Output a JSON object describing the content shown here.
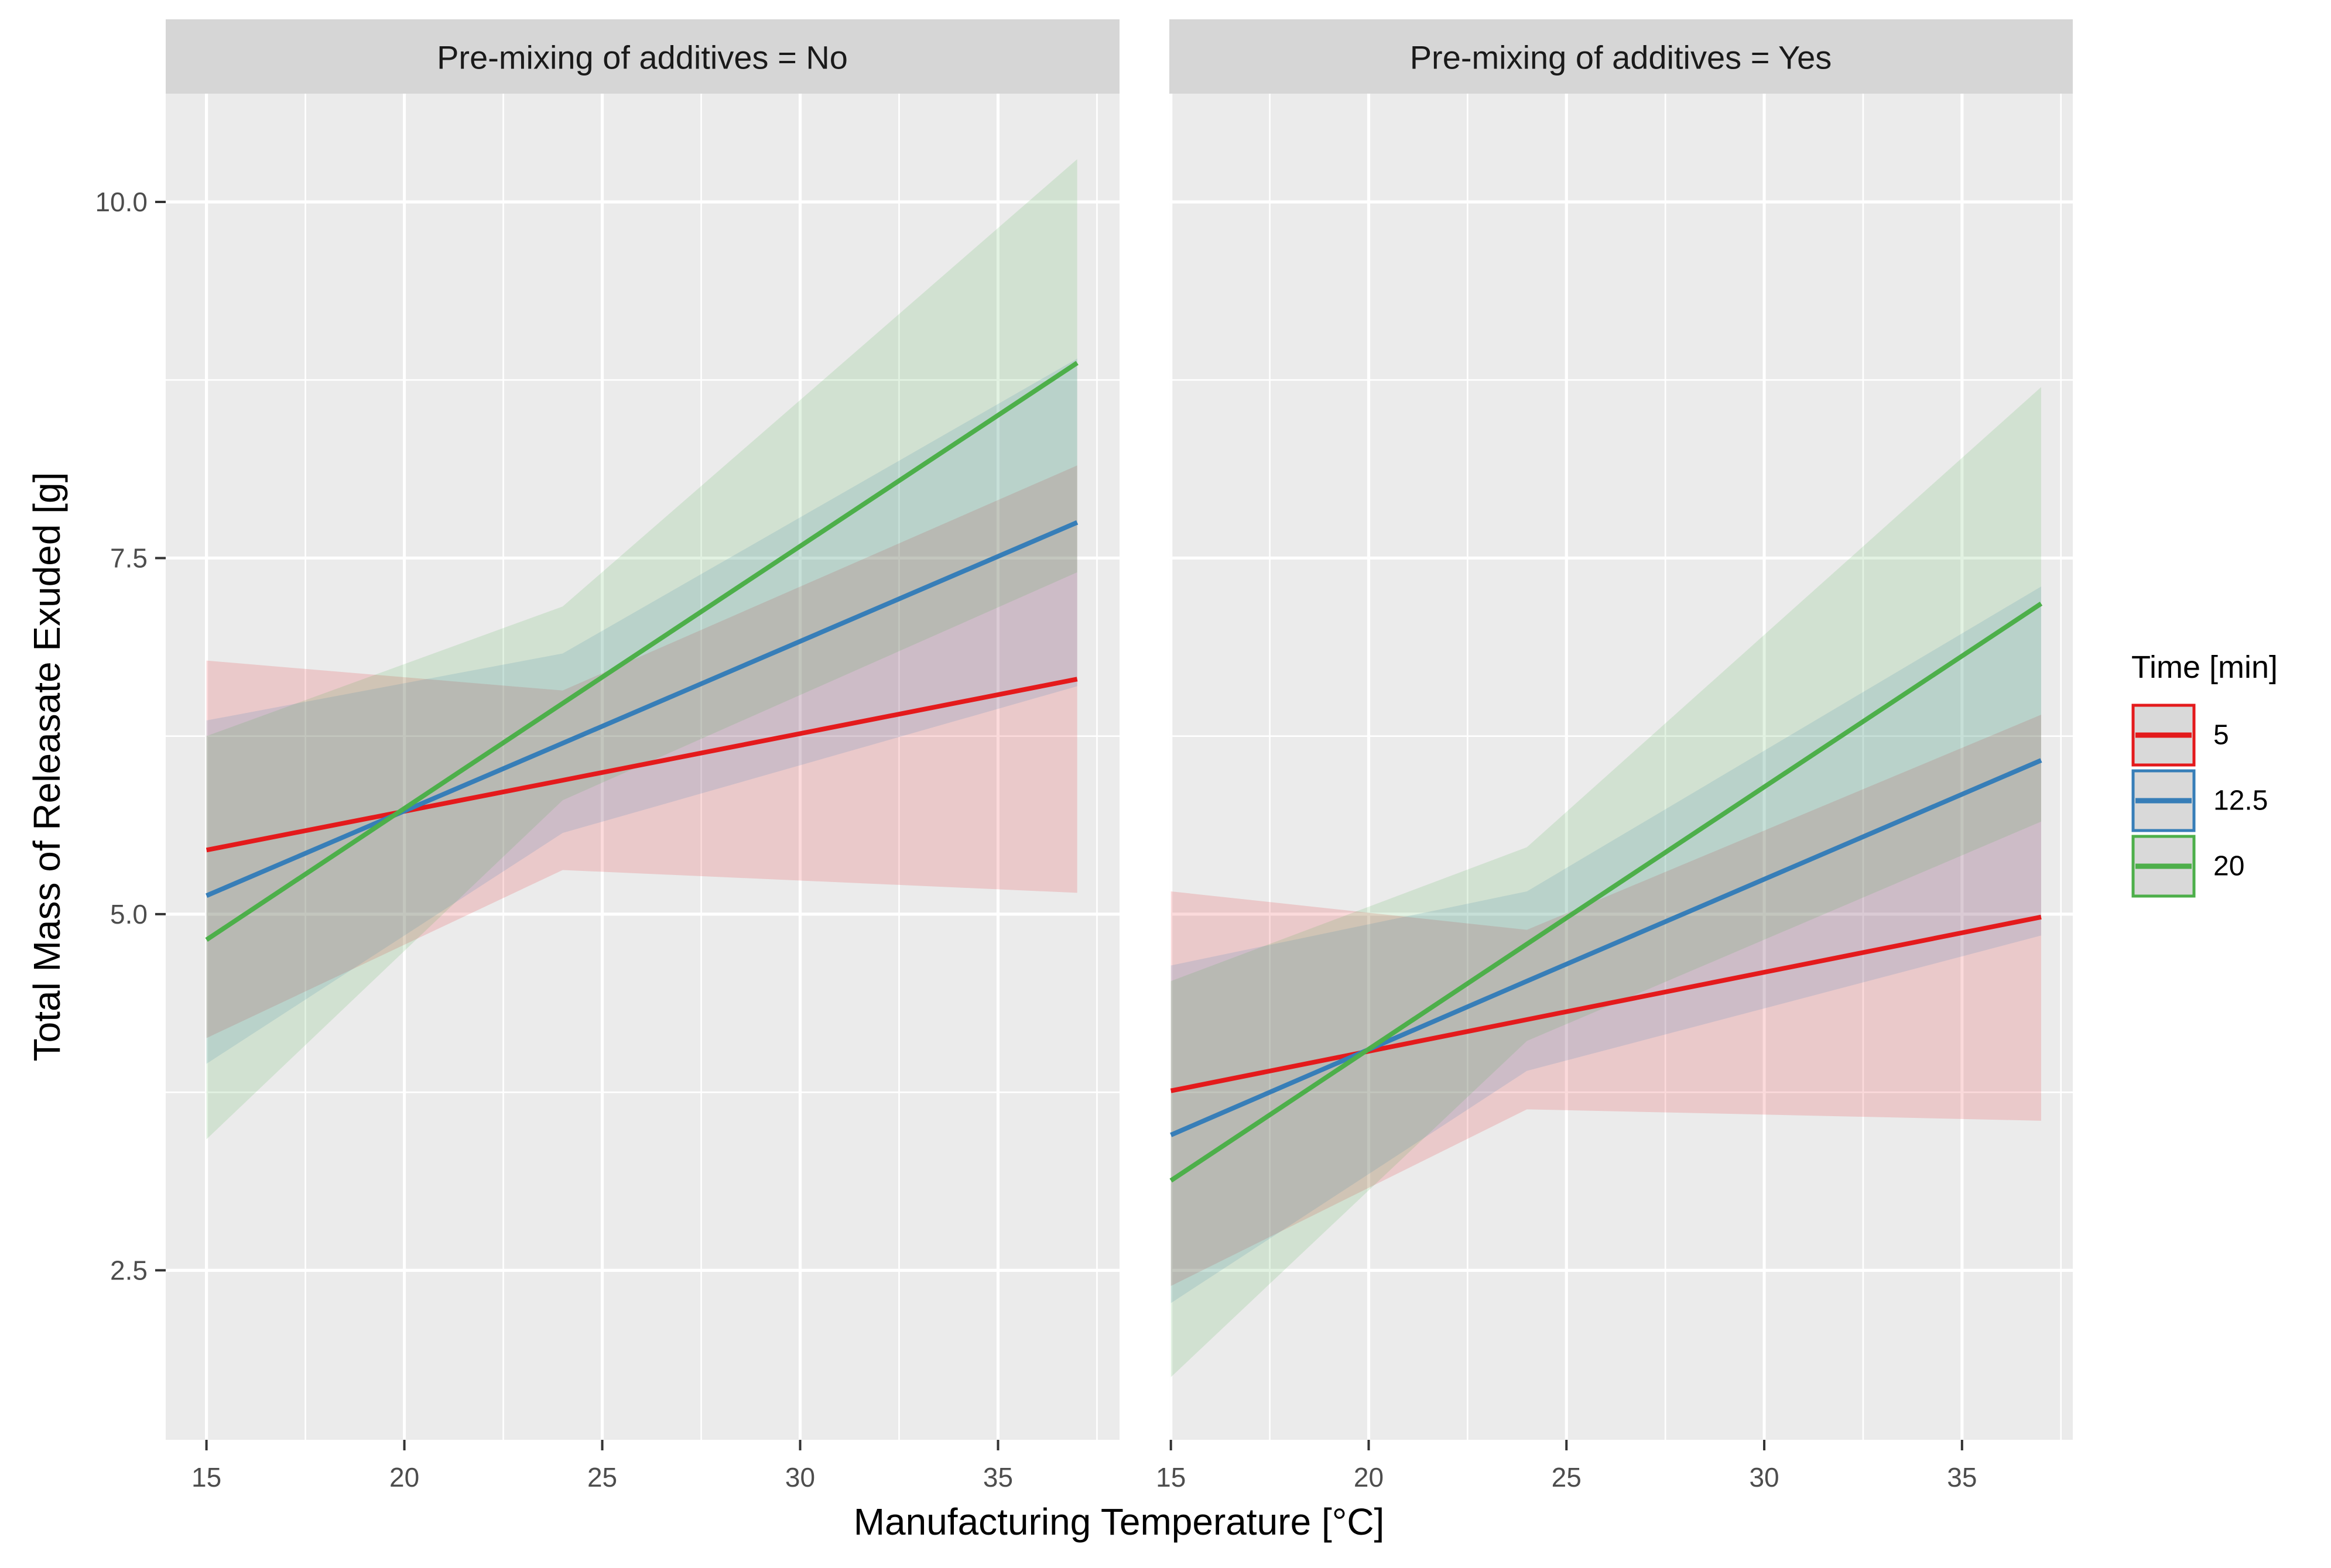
{
  "chart_data": {
    "type": "line",
    "title": "",
    "xlabel": "Manufacturing Temperature [°C]",
    "ylabel": "Total Mass of Releasate Exuded [g]",
    "grid": "on",
    "legend_position": "right",
    "legend": {
      "title": "Time [min]",
      "entries": [
        "5",
        "12.5",
        "20"
      ]
    },
    "x_ticks": [
      {
        "label": "15",
        "value": 15
      },
      {
        "label": "20",
        "value": 20
      },
      {
        "label": "25",
        "value": 25
      },
      {
        "label": "30",
        "value": 30
      },
      {
        "label": "35",
        "value": 35
      }
    ],
    "y_ticks": [
      {
        "label": "2.5",
        "value": 2.5
      },
      {
        "label": "5.0",
        "value": 5.0
      },
      {
        "label": "7.5",
        "value": 7.5
      },
      {
        "label": "10.0",
        "value": 10.0
      }
    ],
    "x_minor": [
      17.5,
      22.5,
      27.5,
      32.5,
      37.5
    ],
    "y_minor": [
      3.75,
      6.25,
      8.75
    ],
    "y_domain": [
      1.31,
      10.76
    ],
    "x": [
      15,
      24,
      37
    ],
    "panels": [
      {
        "title": "Pre-mixing of additives = No",
        "x_domain": [
          13.97,
          38.07
        ],
        "series": [
          {
            "name": "5",
            "color": "#E41A1C",
            "line": [
              5.45,
              5.94,
              6.65
            ],
            "low": [
              4.13,
              5.31,
              5.15
            ],
            "high": [
              6.78,
              6.57,
              8.15
            ]
          },
          {
            "name": "12.5",
            "color": "#377EB8",
            "line": [
              5.13,
              6.2,
              7.75
            ],
            "low": [
              3.95,
              5.57,
              6.6
            ],
            "high": [
              6.36,
              6.83,
              8.9
            ]
          },
          {
            "name": "20",
            "color": "#4DAF4A",
            "line": [
              4.82,
              6.48,
              8.87
            ],
            "low": [
              3.42,
              5.8,
              7.4
            ],
            "high": [
              6.25,
              7.16,
              10.3
            ]
          }
        ]
      },
      {
        "title": "Pre-mixing of additives = Yes",
        "x_domain": [
          14.96,
          37.8
        ],
        "series": [
          {
            "name": "5",
            "color": "#E41A1C",
            "line": [
              3.76,
              4.26,
              4.98
            ],
            "low": [
              2.39,
              3.63,
              3.55
            ],
            "high": [
              5.16,
              4.89,
              6.4
            ]
          },
          {
            "name": "12.5",
            "color": "#377EB8",
            "line": [
              3.45,
              4.53,
              6.08
            ],
            "low": [
              2.27,
              3.9,
              4.85
            ],
            "high": [
              4.64,
              5.16,
              7.3
            ]
          },
          {
            "name": "20",
            "color": "#4DAF4A",
            "line": [
              3.13,
              4.79,
              7.18
            ],
            "low": [
              1.75,
              4.11,
              5.65
            ],
            "high": [
              4.53,
              5.47,
              8.7
            ]
          }
        ]
      }
    ],
    "style": {
      "panel_bg": "#EBEBEB",
      "strip_bg": "#D6D6D6",
      "grid_color": "#FFFFFF",
      "tick_color": "#333333",
      "tick_label_color": "#4D4D4D",
      "ribbon_opacity": 0.16,
      "legend_key_bg": "#D9D9D9"
    }
  }
}
